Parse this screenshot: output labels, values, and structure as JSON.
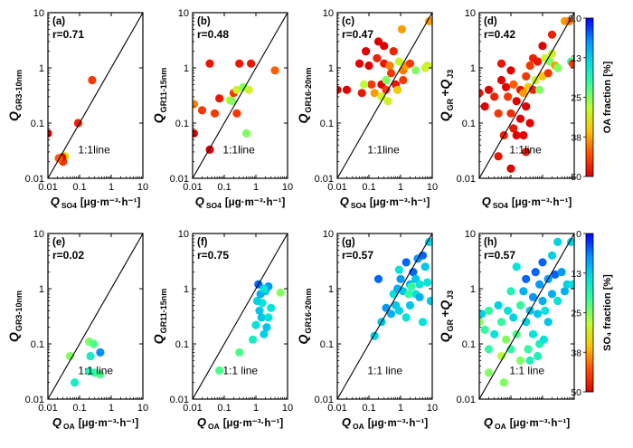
{
  "figure": {
    "colorbars": [
      {
        "label": "OA fraction [%]",
        "ticks": [
          "0.0",
          "13",
          "25",
          "38",
          "50"
        ],
        "range": [
          0,
          50
        ]
      },
      {
        "label": "SO₄ fraction [%]",
        "ticks": [
          "0",
          "13",
          "25",
          "38",
          "50"
        ],
        "range": [
          0,
          50
        ]
      }
    ],
    "tick_labels": [
      "0.01",
      "0.1",
      "1",
      "10"
    ],
    "colorscale": [
      "#0000ff",
      "#0090ff",
      "#00e0e0",
      "#40ff90",
      "#c0ff30",
      "#ffc000",
      "#ff5000",
      "#e00000"
    ]
  },
  "chart_data": [
    {
      "type": "scatter",
      "panel_label": "(a)",
      "r_label": "r=0.71",
      "line_label": "1:1line",
      "ylabel": "Q",
      "ylabel_sub": "GR3-10nm",
      "xlabel": "Q",
      "xlabel_sub": "SO4",
      "xunit": "[μg·m⁻³·h⁻¹]",
      "xscale": "log",
      "yscale": "log",
      "xlim": [
        0.01,
        10
      ],
      "ylim": [
        0.01,
        10
      ],
      "color_by": "OA fraction [%]",
      "show_xticks": true,
      "points": [
        [
          0.25,
          0.6,
          45
        ],
        [
          0.09,
          0.1,
          47
        ],
        [
          0.035,
          0.025,
          33
        ],
        [
          0.03,
          0.02,
          45
        ],
        [
          0.028,
          0.024,
          49
        ],
        [
          0.022,
          0.023,
          42
        ],
        [
          0.01,
          0.065,
          50
        ]
      ]
    },
    {
      "type": "scatter",
      "panel_label": "(b)",
      "r_label": "r=0.48",
      "line_label": "1:1line",
      "ylabel": "Q",
      "ylabel_sub": "GR11-15nm",
      "xlabel": "Q",
      "xlabel_sub": "SO4",
      "xunit": "[μg·m⁻³·h⁻¹]",
      "xscale": "log",
      "yscale": "log",
      "xlim": [
        0.01,
        10
      ],
      "ylim": [
        0.01,
        10
      ],
      "color_by": "OA fraction [%]",
      "show_xticks": true,
      "points": [
        [
          0.035,
          1.2,
          48
        ],
        [
          0.011,
          0.065,
          50
        ],
        [
          0.011,
          0.22,
          40
        ],
        [
          0.02,
          0.17,
          45
        ],
        [
          0.05,
          0.15,
          45
        ],
        [
          0.035,
          0.033,
          50
        ],
        [
          0.07,
          0.28,
          48
        ],
        [
          0.15,
          0.26,
          30
        ],
        [
          0.2,
          0.35,
          45
        ],
        [
          0.18,
          0.25,
          25
        ],
        [
          0.25,
          0.4,
          30
        ],
        [
          0.4,
          0.45,
          25
        ],
        [
          0.3,
          1.2,
          48
        ],
        [
          0.7,
          1.2,
          48
        ],
        [
          0.5,
          0.065,
          25
        ],
        [
          0.6,
          0.4,
          30
        ],
        [
          0.25,
          0.15,
          45
        ],
        [
          4,
          0.9,
          42
        ]
      ]
    },
    {
      "type": "scatter",
      "panel_label": "(c)",
      "r_label": "r=0.47",
      "line_label": "1:1line",
      "ylabel": "Q",
      "ylabel_sub": "GR16-20nm",
      "xlabel": "Q",
      "xlabel_sub": "SO4",
      "xunit": "[μg·m⁻³·h⁻¹]",
      "xscale": "log",
      "yscale": "log",
      "xlim": [
        0.01,
        10
      ],
      "ylim": [
        0.01,
        10
      ],
      "color_by": "OA fraction [%]",
      "show_xticks": true,
      "points": [
        [
          0.01,
          0.4,
          50
        ],
        [
          0.02,
          0.4,
          50
        ],
        [
          0.05,
          1.2,
          50
        ],
        [
          0.06,
          0.35,
          48
        ],
        [
          0.08,
          2,
          50
        ],
        [
          0.1,
          1.1,
          50
        ],
        [
          0.12,
          0.5,
          45
        ],
        [
          0.15,
          0.35,
          38
        ],
        [
          0.18,
          1.5,
          47
        ],
        [
          0.2,
          3,
          50
        ],
        [
          0.25,
          0.5,
          50
        ],
        [
          0.3,
          1.2,
          48
        ],
        [
          0.3,
          2.5,
          50
        ],
        [
          0.35,
          0.4,
          45
        ],
        [
          0.4,
          0.25,
          30
        ],
        [
          0.45,
          1.1,
          40
        ],
        [
          0.5,
          0.8,
          45
        ],
        [
          0.6,
          2,
          47
        ],
        [
          0.7,
          0.5,
          48
        ],
        [
          0.8,
          0.4,
          35
        ],
        [
          0.9,
          1.3,
          30
        ],
        [
          1.2,
          0.9,
          40
        ],
        [
          1.2,
          0.6,
          45
        ],
        [
          1.5,
          1.1,
          38
        ],
        [
          2,
          1.2,
          45
        ],
        [
          3,
          0.9,
          25
        ],
        [
          0.35,
          0.6,
          25
        ],
        [
          0.25,
          0.3,
          30
        ],
        [
          1.1,
          5,
          38
        ],
        [
          6,
          1,
          30
        ],
        [
          7,
          1.1,
          30
        ],
        [
          8,
          7,
          38
        ],
        [
          0.07,
          0.5,
          28
        ]
      ]
    },
    {
      "type": "scatter",
      "panel_label": "(d)",
      "r_label": "r=0.42",
      "line_label": "1:1line",
      "ylabel": "Q",
      "ylabel_sub": "GR",
      "ylabel_extra": "+Q",
      "ylabel_extra_sub": "J3",
      "xlabel": "Q",
      "xlabel_sub": "SO4",
      "xunit": "[μg·m⁻³·h⁻¹]",
      "xscale": "log",
      "yscale": "log",
      "xlim": [
        0.01,
        10
      ],
      "ylim": [
        0.01,
        10
      ],
      "color_by": "OA fraction [%]",
      "show_xticks": false,
      "points": [
        [
          0.01,
          0.35,
          48
        ],
        [
          0.015,
          0.2,
          50
        ],
        [
          0.02,
          0.4,
          50
        ],
        [
          0.03,
          0.3,
          47
        ],
        [
          0.04,
          0.15,
          45
        ],
        [
          0.05,
          0.6,
          50
        ],
        [
          0.05,
          1.2,
          48
        ],
        [
          0.06,
          0.06,
          47
        ],
        [
          0.07,
          0.45,
          50
        ],
        [
          0.08,
          0.3,
          45
        ],
        [
          0.1,
          0.9,
          50
        ],
        [
          0.1,
          0.15,
          46
        ],
        [
          0.1,
          0.015,
          50
        ],
        [
          0.12,
          0.08,
          48
        ],
        [
          0.12,
          0.5,
          42
        ],
        [
          0.15,
          0.25,
          50
        ],
        [
          0.15,
          0.06,
          50
        ],
        [
          0.2,
          0.4,
          48
        ],
        [
          0.2,
          0.12,
          50
        ],
        [
          0.25,
          0.35,
          38
        ],
        [
          0.3,
          0.7,
          45
        ],
        [
          0.3,
          0.2,
          50
        ],
        [
          0.35,
          0.45,
          35
        ],
        [
          0.4,
          1.1,
          45
        ],
        [
          0.5,
          0.4,
          47
        ],
        [
          0.5,
          1.5,
          47
        ],
        [
          0.6,
          0.6,
          30
        ],
        [
          0.7,
          1.3,
          48
        ],
        [
          0.8,
          0.4,
          25
        ],
        [
          1,
          0.7,
          35
        ],
        [
          1,
          2.5,
          50
        ],
        [
          1.2,
          1.5,
          30
        ],
        [
          1.5,
          0.8,
          45
        ],
        [
          1.7,
          1.3,
          25
        ],
        [
          2,
          1.8,
          30
        ],
        [
          2,
          4,
          47
        ],
        [
          2.5,
          1.1,
          38
        ],
        [
          3,
          1,
          25
        ],
        [
          5,
          7,
          38
        ],
        [
          7,
          7,
          40
        ],
        [
          8,
          1.3,
          20
        ],
        [
          9,
          1.2,
          45
        ],
        [
          0.04,
          0.025,
          48
        ],
        [
          0.25,
          0.06,
          50
        ],
        [
          0.3,
          0.03,
          48
        ],
        [
          0.4,
          0.1,
          50
        ]
      ]
    },
    {
      "type": "scatter",
      "panel_label": "(e)",
      "r_label": "r=0.02",
      "line_label": "1:1 line",
      "ylabel": "Q",
      "ylabel_sub": "GR3-10nm",
      "xlabel": "Q",
      "xlabel_sub": "OA",
      "xunit": "[μg·m⁻³·h⁻¹]",
      "xscale": "log",
      "yscale": "log",
      "xlim": [
        0.01,
        10
      ],
      "ylim": [
        0.01,
        10
      ],
      "color_by": "SO₄ fraction [%]",
      "show_xticks": true,
      "points": [
        [
          0.05,
          0.06,
          25
        ],
        [
          0.07,
          0.02,
          17
        ],
        [
          0.2,
          0.11,
          25
        ],
        [
          0.28,
          0.1,
          22
        ],
        [
          0.22,
          0.06,
          17
        ],
        [
          0.3,
          0.03,
          20
        ],
        [
          0.45,
          0.028,
          22
        ],
        [
          0.45,
          0.07,
          7
        ],
        [
          0.2,
          0.032,
          18
        ]
      ]
    },
    {
      "type": "scatter",
      "panel_label": "(f)",
      "r_label": "r=0.75",
      "line_label": "1:1 line",
      "ylabel": "Q",
      "ylabel_sub": "GR11-15nm",
      "xlabel": "Q",
      "xlabel_sub": "OA",
      "xunit": "[μg·m⁻³·h⁻¹]",
      "xscale": "log",
      "yscale": "log",
      "xlim": [
        0.01,
        10
      ],
      "ylim": [
        0.01,
        10
      ],
      "color_by": "SO₄ fraction [%]",
      "show_xticks": true,
      "points": [
        [
          0.07,
          0.033,
          22
        ],
        [
          0.3,
          0.07,
          22
        ],
        [
          0.8,
          0.12,
          17
        ],
        [
          1,
          0.22,
          15
        ],
        [
          1.2,
          1.2,
          5
        ],
        [
          1.3,
          0.4,
          12
        ],
        [
          1.5,
          0.3,
          12
        ],
        [
          1.6,
          0.55,
          15
        ],
        [
          1.8,
          0.15,
          13
        ],
        [
          2,
          0.9,
          12
        ],
        [
          2.2,
          0.2,
          12
        ],
        [
          2.5,
          1.1,
          8
        ],
        [
          3,
          0.45,
          15
        ],
        [
          1.1,
          0.6,
          13
        ],
        [
          1.4,
          0.8,
          10
        ],
        [
          6,
          0.85,
          25
        ],
        [
          1.8,
          1.0,
          15
        ],
        [
          2.5,
          0.3,
          15
        ]
      ]
    },
    {
      "type": "scatter",
      "panel_label": "(g)",
      "r_label": "r=0.57",
      "line_label": "1:1 line",
      "ylabel": "Q",
      "ylabel_sub": "GR16-20nm",
      "xlabel": "Q",
      "xlabel_sub": "OA",
      "xunit": "[μg·m⁻³·h⁻¹]",
      "xscale": "log",
      "yscale": "log",
      "xlim": [
        0.01,
        10
      ],
      "ylim": [
        0.01,
        10
      ],
      "color_by": "SO₄ fraction [%]",
      "show_xticks": true,
      "points": [
        [
          0.15,
          0.14,
          13
        ],
        [
          0.2,
          1.5,
          5
        ],
        [
          0.25,
          0.25,
          12
        ],
        [
          0.35,
          0.45,
          8
        ],
        [
          0.5,
          0.35,
          10
        ],
        [
          0.6,
          0.8,
          15
        ],
        [
          0.7,
          0.5,
          12
        ],
        [
          0.8,
          1.0,
          10
        ],
        [
          0.9,
          0.4,
          13
        ],
        [
          1,
          1.5,
          8
        ],
        [
          1.2,
          0.9,
          12
        ],
        [
          1.5,
          3,
          5
        ],
        [
          1.5,
          0.3,
          15
        ],
        [
          2,
          1.2,
          10
        ],
        [
          2,
          0.5,
          12
        ],
        [
          2.5,
          2,
          5
        ],
        [
          3,
          0.8,
          15
        ],
        [
          3,
          1.5,
          12
        ],
        [
          3.5,
          3.5,
          8
        ],
        [
          4,
          0.7,
          10
        ],
        [
          4,
          1.2,
          15
        ],
        [
          5,
          4,
          5
        ],
        [
          5,
          0.25,
          15
        ],
        [
          6,
          2.5,
          12
        ],
        [
          7,
          1.3,
          15
        ],
        [
          8,
          7,
          13
        ],
        [
          9,
          0.6,
          12
        ],
        [
          1.8,
          0.8,
          20
        ],
        [
          0.9,
          2.2,
          15
        ],
        [
          2.2,
          1.1,
          20
        ]
      ]
    },
    {
      "type": "scatter",
      "panel_label": "(h)",
      "r_label": "r=0.57",
      "line_label": "1:1 line",
      "ylabel": "Q",
      "ylabel_sub": "GR",
      "ylabel_extra": "+Q",
      "ylabel_extra_sub": "J3",
      "xlabel": "Q",
      "xlabel_sub": "OA",
      "xunit": "[μg·m⁻³·h⁻¹]",
      "xscale": "log",
      "yscale": "log",
      "xlim": [
        0.01,
        10
      ],
      "ylim": [
        0.01,
        10
      ],
      "color_by": "SO₄ fraction [%]",
      "show_xticks": false,
      "points": [
        [
          0.01,
          0.25,
          25
        ],
        [
          0.012,
          0.35,
          13
        ],
        [
          0.015,
          0.18,
          20
        ],
        [
          0.02,
          0.08,
          20
        ],
        [
          0.02,
          0.03,
          25
        ],
        [
          0.03,
          0.15,
          15
        ],
        [
          0.04,
          0.5,
          13
        ],
        [
          0.05,
          0.25,
          20
        ],
        [
          0.05,
          0.06,
          28
        ],
        [
          0.06,
          0.02,
          25
        ],
        [
          0.07,
          0.12,
          25
        ],
        [
          0.08,
          0.4,
          15
        ],
        [
          0.1,
          0.08,
          20
        ],
        [
          0.12,
          0.3,
          13
        ],
        [
          0.15,
          0.15,
          22
        ],
        [
          0.15,
          2.5,
          15
        ],
        [
          0.2,
          0.5,
          20
        ],
        [
          0.2,
          0.05,
          25
        ],
        [
          0.25,
          0.9,
          10
        ],
        [
          0.3,
          0.25,
          13
        ],
        [
          0.3,
          1.5,
          5
        ],
        [
          0.35,
          0.08,
          20
        ],
        [
          0.4,
          0.4,
          12
        ],
        [
          0.5,
          0.7,
          8
        ],
        [
          0.5,
          0.15,
          15
        ],
        [
          0.6,
          2,
          5
        ],
        [
          0.7,
          0.35,
          12
        ],
        [
          0.8,
          1.2,
          8
        ],
        [
          0.8,
          0.1,
          18
        ],
        [
          1,
          0.6,
          10
        ],
        [
          1,
          3,
          5
        ],
        [
          1.2,
          0.4,
          15
        ],
        [
          1.5,
          1.5,
          8
        ],
        [
          1.5,
          0.25,
          12
        ],
        [
          2,
          0.8,
          10
        ],
        [
          2,
          4,
          13
        ],
        [
          2.5,
          1.8,
          5
        ],
        [
          3,
          0.6,
          15
        ],
        [
          3,
          7,
          13
        ],
        [
          4,
          2,
          8
        ],
        [
          5,
          0.9,
          10
        ],
        [
          6,
          1.2,
          13
        ],
        [
          8,
          7,
          13
        ],
        [
          9,
          1.2,
          15
        ],
        [
          1.1,
          0.12,
          15
        ],
        [
          0.7,
          0.06,
          18
        ],
        [
          0.02,
          0.4,
          20
        ],
        [
          0.1,
          0.9,
          18
        ],
        [
          0.4,
          0.05,
          18
        ]
      ]
    }
  ]
}
